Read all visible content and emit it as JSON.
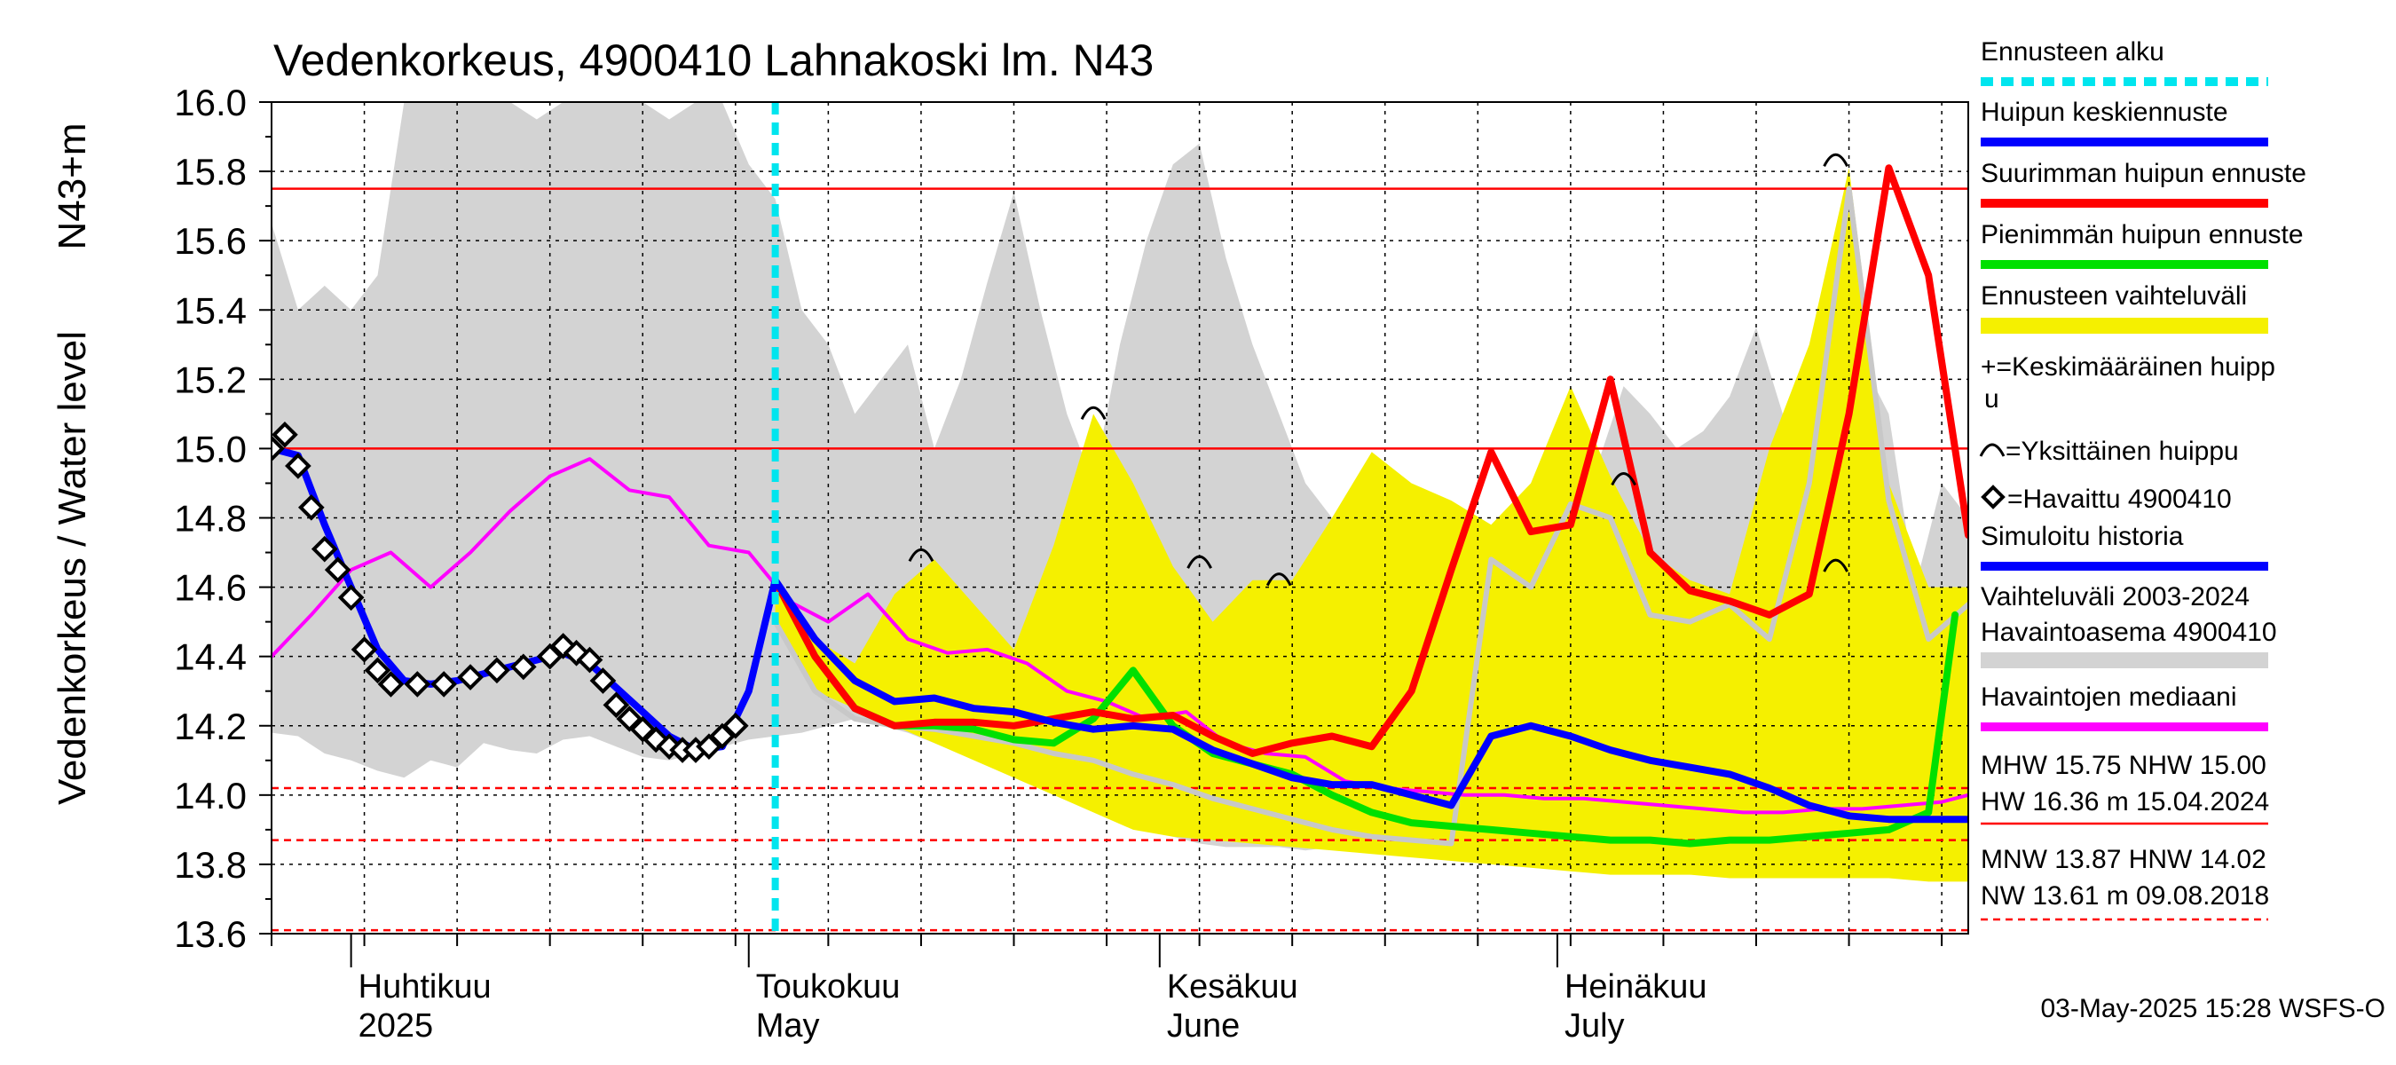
{
  "chart_data": {
    "type": "line",
    "title": "Vedenkorkeus, 4900410 Lahnakoski lm. N43",
    "ylabel": "Vedenkorkeus / Water level",
    "ylabel_unit": "N43+m",
    "ylim": [
      13.6,
      16.0
    ],
    "yticks": [
      "13.6",
      "13.8",
      "14.0",
      "14.2",
      "14.4",
      "14.6",
      "14.8",
      "15.0",
      "15.2",
      "15.4",
      "15.6",
      "15.8",
      "16.0"
    ],
    "xlim": [
      "2025-03-26",
      "2025-08-01"
    ],
    "grid": true,
    "forecast_start": "2025-05-03",
    "month_labels": [
      {
        "date": "2025-04-01",
        "fi": "Huhtikuu",
        "en": "2025"
      },
      {
        "date": "2025-05-01",
        "fi": "Toukokuu",
        "en": "May"
      },
      {
        "date": "2025-06-01",
        "fi": "Kesäkuu",
        "en": "June"
      },
      {
        "date": "2025-07-01",
        "fi": "Heinäkuu",
        "en": "July"
      }
    ],
    "reference_lines": [
      {
        "name": "MHW",
        "value": 15.75,
        "style": "solid"
      },
      {
        "name": "NHW",
        "value": 15.0,
        "style": "solid"
      },
      {
        "name": "HNW",
        "value": 14.02,
        "style": "dashed"
      },
      {
        "name": "MNW",
        "value": 13.87,
        "style": "dashed"
      },
      {
        "name": "NW",
        "value": 13.61,
        "style": "dashed"
      }
    ],
    "history_band": {
      "x": [
        "2025-03-26",
        "2025-03-28",
        "2025-03-30",
        "2025-04-01",
        "2025-04-03",
        "2025-04-05",
        "2025-04-07",
        "2025-04-09",
        "2025-04-11",
        "2025-04-13",
        "2025-04-15",
        "2025-04-17",
        "2025-04-19",
        "2025-04-21",
        "2025-04-23",
        "2025-04-25",
        "2025-04-27",
        "2025-04-29",
        "2025-05-01",
        "2025-05-03",
        "2025-05-05",
        "2025-05-07",
        "2025-05-09",
        "2025-05-11",
        "2025-05-13",
        "2025-05-15",
        "2025-05-17",
        "2025-05-19",
        "2025-05-21",
        "2025-05-23",
        "2025-05-25",
        "2025-05-27",
        "2025-05-29",
        "2025-05-31",
        "2025-06-02",
        "2025-06-04",
        "2025-06-06",
        "2025-06-08",
        "2025-06-10",
        "2025-06-12",
        "2025-06-14",
        "2025-06-16",
        "2025-06-18",
        "2025-06-20",
        "2025-06-22",
        "2025-06-24",
        "2025-06-26",
        "2025-06-28",
        "2025-06-30",
        "2025-07-02",
        "2025-07-04",
        "2025-07-06",
        "2025-07-08",
        "2025-07-10",
        "2025-07-12",
        "2025-07-14",
        "2025-07-16",
        "2025-07-18",
        "2025-07-20",
        "2025-07-22",
        "2025-07-24",
        "2025-07-26",
        "2025-07-28",
        "2025-07-30",
        "2025-08-01"
      ],
      "max": [
        15.65,
        15.4,
        15.47,
        15.4,
        15.5,
        16.0,
        16.0,
        16.0,
        16.0,
        16.0,
        15.95,
        16.0,
        16.0,
        16.0,
        16.0,
        15.95,
        16.0,
        16.0,
        15.82,
        15.72,
        15.4,
        15.3,
        15.1,
        15.2,
        15.3,
        15.0,
        15.2,
        15.48,
        15.74,
        15.4,
        15.1,
        14.9,
        15.3,
        15.6,
        15.82,
        15.88,
        15.55,
        15.3,
        15.1,
        14.9,
        14.8,
        14.75,
        14.7,
        14.6,
        14.65,
        14.62,
        14.6,
        14.55,
        14.9,
        14.8,
        14.95,
        15.18,
        15.1,
        15.0,
        15.05,
        15.15,
        15.35,
        15.1,
        14.9,
        15.0,
        15.25,
        15.1,
        14.6,
        14.9,
        14.8
      ],
      "min": [
        14.18,
        14.17,
        14.12,
        14.1,
        14.07,
        14.05,
        14.1,
        14.08,
        14.15,
        14.13,
        14.12,
        14.16,
        14.17,
        14.14,
        14.11,
        14.1,
        14.12,
        14.14,
        14.16,
        14.17,
        14.18,
        14.2,
        14.22,
        14.2,
        14.18,
        14.15,
        14.12,
        14.1,
        14.08,
        14.05,
        14.02,
        13.98,
        13.95,
        13.92,
        13.88,
        13.86,
        13.85,
        13.85,
        13.85,
        13.84,
        13.85,
        13.84,
        13.84,
        13.84,
        13.84,
        13.84,
        13.84,
        13.84,
        13.83,
        13.83,
        13.83,
        13.82,
        13.82,
        13.82,
        13.82,
        13.82,
        13.82,
        13.81,
        13.82,
        13.83,
        13.83,
        13.83,
        13.84,
        13.84,
        13.85
      ]
    },
    "forecast_band": {
      "x": [
        "2025-05-03",
        "2025-05-06",
        "2025-05-09",
        "2025-05-12",
        "2025-05-15",
        "2025-05-18",
        "2025-05-21",
        "2025-05-24",
        "2025-05-27",
        "2025-05-30",
        "2025-06-02",
        "2025-06-05",
        "2025-06-08",
        "2025-06-11",
        "2025-06-14",
        "2025-06-17",
        "2025-06-20",
        "2025-06-23",
        "2025-06-26",
        "2025-06-29",
        "2025-07-02",
        "2025-07-05",
        "2025-07-08",
        "2025-07-11",
        "2025-07-14",
        "2025-07-17",
        "2025-07-20",
        "2025-07-23",
        "2025-07-26",
        "2025-07-29",
        "2025-08-01"
      ],
      "max": [
        14.62,
        14.45,
        14.38,
        14.58,
        14.68,
        14.55,
        14.42,
        14.72,
        15.1,
        14.9,
        14.66,
        14.5,
        14.62,
        14.62,
        14.8,
        14.99,
        14.9,
        14.85,
        14.78,
        14.9,
        15.18,
        14.92,
        14.7,
        14.62,
        14.58,
        15.0,
        15.3,
        15.81,
        14.9,
        14.6,
        14.6
      ],
      "min": [
        14.5,
        14.3,
        14.25,
        14.2,
        14.15,
        14.1,
        14.05,
        14.0,
        13.95,
        13.9,
        13.88,
        13.87,
        13.86,
        13.85,
        13.84,
        13.83,
        13.82,
        13.81,
        13.8,
        13.79,
        13.78,
        13.77,
        13.77,
        13.77,
        13.76,
        13.76,
        13.76,
        13.76,
        13.76,
        13.75,
        13.75
      ]
    },
    "series": [
      {
        "name": "Havaittu 4900410",
        "style": "markers",
        "x": [
          "2025-03-26",
          "2025-03-27",
          "2025-03-28",
          "2025-03-29",
          "2025-03-30",
          "2025-03-31",
          "2025-04-01",
          "2025-04-02",
          "2025-04-03",
          "2025-04-04",
          "2025-04-06",
          "2025-04-08",
          "2025-04-10",
          "2025-04-12",
          "2025-04-14",
          "2025-04-16",
          "2025-04-17",
          "2025-04-18",
          "2025-04-19",
          "2025-04-20",
          "2025-04-21",
          "2025-04-22",
          "2025-04-23",
          "2025-04-24",
          "2025-04-25",
          "2025-04-26",
          "2025-04-27",
          "2025-04-28",
          "2025-04-29",
          "2025-04-30"
        ],
        "y": [
          15.0,
          15.04,
          14.95,
          14.83,
          14.71,
          14.65,
          14.57,
          14.42,
          14.36,
          14.32,
          14.32,
          14.32,
          14.34,
          14.36,
          14.37,
          14.4,
          14.43,
          14.41,
          14.39,
          14.33,
          14.26,
          14.22,
          14.19,
          14.16,
          14.14,
          14.13,
          14.13,
          14.14,
          14.17,
          14.2
        ]
      },
      {
        "name": "Simuloitu historia",
        "style": "line",
        "x": [
          "2025-03-26",
          "2025-03-28",
          "2025-03-30",
          "2025-04-01",
          "2025-04-03",
          "2025-04-05",
          "2025-04-07",
          "2025-04-09",
          "2025-04-11",
          "2025-04-13",
          "2025-04-15",
          "2025-04-17",
          "2025-04-19",
          "2025-04-21",
          "2025-04-23",
          "2025-04-25",
          "2025-04-27",
          "2025-04-29",
          "2025-05-01",
          "2025-05-03"
        ],
        "y": [
          15.0,
          14.98,
          14.78,
          14.6,
          14.42,
          14.33,
          14.32,
          14.33,
          14.35,
          14.37,
          14.39,
          14.41,
          14.38,
          14.31,
          14.24,
          14.17,
          14.13,
          14.14,
          14.3,
          14.62
        ]
      },
      {
        "name": "Huipun keskiennuste",
        "style": "line",
        "x": [
          "2025-05-03",
          "2025-05-06",
          "2025-05-09",
          "2025-05-12",
          "2025-05-15",
          "2025-05-18",
          "2025-05-21",
          "2025-05-24",
          "2025-05-27",
          "2025-05-30",
          "2025-06-02",
          "2025-06-05",
          "2025-06-08",
          "2025-06-11",
          "2025-06-14",
          "2025-06-17",
          "2025-06-20",
          "2025-06-23",
          "2025-06-26",
          "2025-06-29",
          "2025-07-02",
          "2025-07-05",
          "2025-07-08",
          "2025-07-11",
          "2025-07-14",
          "2025-07-17",
          "2025-07-20",
          "2025-07-23",
          "2025-07-26",
          "2025-07-29",
          "2025-08-01"
        ],
        "y": [
          14.62,
          14.45,
          14.33,
          14.27,
          14.28,
          14.25,
          14.24,
          14.21,
          14.19,
          14.2,
          14.19,
          14.13,
          14.09,
          14.05,
          14.03,
          14.03,
          14.0,
          13.97,
          14.17,
          14.2,
          14.17,
          14.13,
          14.1,
          14.08,
          14.06,
          14.02,
          13.97,
          13.94,
          13.93,
          13.93,
          13.93
        ]
      },
      {
        "name": "Suurimman huipun ennuste",
        "style": "line",
        "x": [
          "2025-05-03",
          "2025-05-06",
          "2025-05-09",
          "2025-05-12",
          "2025-05-15",
          "2025-05-18",
          "2025-05-21",
          "2025-05-24",
          "2025-05-27",
          "2025-05-30",
          "2025-06-02",
          "2025-06-05",
          "2025-06-08",
          "2025-06-11",
          "2025-06-14",
          "2025-06-17",
          "2025-06-20",
          "2025-06-23",
          "2025-06-26",
          "2025-06-29",
          "2025-07-02",
          "2025-07-05",
          "2025-07-08",
          "2025-07-11",
          "2025-07-14",
          "2025-07-17",
          "2025-07-20",
          "2025-07-23",
          "2025-07-26",
          "2025-07-29",
          "2025-08-01"
        ],
        "y": [
          14.62,
          14.4,
          14.25,
          14.2,
          14.21,
          14.21,
          14.2,
          14.22,
          14.24,
          14.22,
          14.23,
          14.17,
          14.12,
          14.15,
          14.17,
          14.14,
          14.3,
          14.65,
          14.99,
          14.76,
          14.78,
          15.2,
          14.7,
          14.59,
          14.56,
          14.52,
          14.58,
          15.1,
          15.81,
          15.5,
          14.75
        ]
      },
      {
        "name": "Pienimmän huipun ennuste",
        "style": "line",
        "x": [
          "2025-05-03",
          "2025-05-06",
          "2025-05-09",
          "2025-05-12",
          "2025-05-15",
          "2025-05-18",
          "2025-05-21",
          "2025-05-24",
          "2025-05-27",
          "2025-05-30",
          "2025-06-02",
          "2025-06-05",
          "2025-06-08",
          "2025-06-11",
          "2025-06-14",
          "2025-06-17",
          "2025-06-20",
          "2025-06-23",
          "2025-06-26",
          "2025-06-29",
          "2025-07-02",
          "2025-07-05",
          "2025-07-08",
          "2025-07-11",
          "2025-07-14",
          "2025-07-17",
          "2025-07-20",
          "2025-07-23",
          "2025-07-26",
          "2025-07-29",
          "2025-07-31"
        ],
        "y": [
          14.62,
          14.4,
          14.25,
          14.2,
          14.2,
          14.19,
          14.16,
          14.15,
          14.22,
          14.36,
          14.2,
          14.12,
          14.09,
          14.06,
          14.0,
          13.95,
          13.92,
          13.91,
          13.9,
          13.89,
          13.88,
          13.87,
          13.87,
          13.86,
          13.87,
          13.87,
          13.88,
          13.89,
          13.9,
          13.95,
          14.52
        ]
      },
      {
        "name": "Havaintojen mediaani",
        "style": "line",
        "x": [
          "2025-03-26",
          "2025-03-29",
          "2025-04-01",
          "2025-04-04",
          "2025-04-07",
          "2025-04-10",
          "2025-04-13",
          "2025-04-16",
          "2025-04-19",
          "2025-04-22",
          "2025-04-25",
          "2025-04-28",
          "2025-05-01",
          "2025-05-04",
          "2025-05-07",
          "2025-05-10",
          "2025-05-13",
          "2025-05-16",
          "2025-05-19",
          "2025-05-22",
          "2025-05-25",
          "2025-05-28",
          "2025-05-31",
          "2025-06-03",
          "2025-06-06",
          "2025-06-09",
          "2025-06-12",
          "2025-06-15",
          "2025-06-18",
          "2025-06-21",
          "2025-06-24",
          "2025-06-27",
          "2025-06-30",
          "2025-07-03",
          "2025-07-06",
          "2025-07-09",
          "2025-07-12",
          "2025-07-15",
          "2025-07-18",
          "2025-07-21",
          "2025-07-24",
          "2025-07-27",
          "2025-07-30",
          "2025-08-01"
        ],
        "y": [
          14.4,
          14.52,
          14.65,
          14.7,
          14.6,
          14.7,
          14.82,
          14.92,
          14.97,
          14.88,
          14.86,
          14.72,
          14.7,
          14.56,
          14.5,
          14.58,
          14.45,
          14.41,
          14.42,
          14.38,
          14.3,
          14.27,
          14.22,
          14.24,
          14.15,
          14.12,
          14.11,
          14.04,
          14.02,
          14.01,
          14.0,
          14.0,
          13.99,
          13.99,
          13.98,
          13.97,
          13.96,
          13.95,
          13.95,
          13.96,
          13.96,
          13.97,
          13.98,
          14.0
        ]
      },
      {
        "name": "Vaihteluväli 2003-2024 Havaintoasema 4900410",
        "style": "line",
        "x": [
          "2025-05-03",
          "2025-05-06",
          "2025-05-09",
          "2025-05-12",
          "2025-05-15",
          "2025-05-18",
          "2025-05-21",
          "2025-05-24",
          "2025-05-27",
          "2025-05-30",
          "2025-06-02",
          "2025-06-05",
          "2025-06-08",
          "2025-06-11",
          "2025-06-14",
          "2025-06-17",
          "2025-06-20",
          "2025-06-23",
          "2025-06-26",
          "2025-06-29",
          "2025-07-02",
          "2025-07-05",
          "2025-07-08",
          "2025-07-11",
          "2025-07-14",
          "2025-07-17",
          "2025-07-20",
          "2025-07-23",
          "2025-07-26",
          "2025-07-29",
          "2025-08-01"
        ],
        "y": [
          14.5,
          14.3,
          14.22,
          14.2,
          14.19,
          14.17,
          14.15,
          14.12,
          14.1,
          14.06,
          14.03,
          13.99,
          13.96,
          13.93,
          13.9,
          13.88,
          13.87,
          13.86,
          14.68,
          14.6,
          14.84,
          14.8,
          14.52,
          14.5,
          14.55,
          14.45,
          14.9,
          15.75,
          14.85,
          14.45,
          14.55
        ]
      }
    ],
    "peak_markers": [
      {
        "type": "Yksittäinen huippu",
        "x": "2025-05-14",
        "y": 14.68
      },
      {
        "type": "Yksittäinen huippu",
        "x": "2025-05-27",
        "y": 15.09
      },
      {
        "type": "Yksittäinen huippu",
        "x": "2025-06-04",
        "y": 14.66
      },
      {
        "type": "Yksittäinen huippu",
        "x": "2025-06-10",
        "y": 14.61
      },
      {
        "type": "Yksittäinen huippu",
        "x": "2025-07-06",
        "y": 14.9
      },
      {
        "type": "Yksittäinen huippu",
        "x": "2025-07-22",
        "y": 15.82
      },
      {
        "type": "Yksittäinen huippu",
        "x": "2025-07-22",
        "y": 14.65
      }
    ],
    "legend": {
      "placement": "right",
      "entries": [
        {
          "label": "Ennusteen alku",
          "color": "#00e5ee",
          "style": "dashed"
        },
        {
          "label": "Huipun keskiennuste",
          "color": "#0000ff",
          "style": "line"
        },
        {
          "label": "Suurimman huipun ennuste",
          "color": "#ff0000",
          "style": "line"
        },
        {
          "label": "Pienimmän huipun ennuste",
          "color": "#00e000",
          "style": "line"
        },
        {
          "label": "Ennusteen vaihteluväli",
          "color": "#f5f000",
          "style": "band"
        },
        {
          "label": "+=Keskimääräinen huipp",
          "label2": "u",
          "style": "text"
        },
        {
          "label": "=Yksittäinen huippu",
          "style": "arc"
        },
        {
          "label": "=Havaittu 4900410",
          "style": "diamond"
        },
        {
          "label": "Simuloitu historia",
          "color": "#0000ff",
          "style": "line"
        },
        {
          "label": "Vaihteluväli 2003-2024",
          "label2": " Havaintoasema 4900410",
          "color": "#d3d3d3",
          "style": "band"
        },
        {
          "label": "Havaintojen mediaani",
          "color": "#ff00ff",
          "style": "line"
        }
      ]
    },
    "stats": {
      "line1": "MHW  15.75 NHW  15.00",
      "line2": "HW  16.36 m 15.04.2024",
      "line3": "MNW  13.87 HNW  14.02",
      "line4": "NW  13.61 m 09.08.2018"
    },
    "footer": "03-May-2025 15:28 WSFS-O",
    "colors": {
      "history_band": "#d3d3d3",
      "forecast_band": "#f5f000",
      "mean_forecast": "#0000ff",
      "max_forecast": "#ff0000",
      "min_forecast": "#00e000",
      "median": "#ff00ff",
      "history_sim": "#c8c8c8",
      "forecast_start": "#00e5ee",
      "reference": "#ff0000"
    }
  }
}
